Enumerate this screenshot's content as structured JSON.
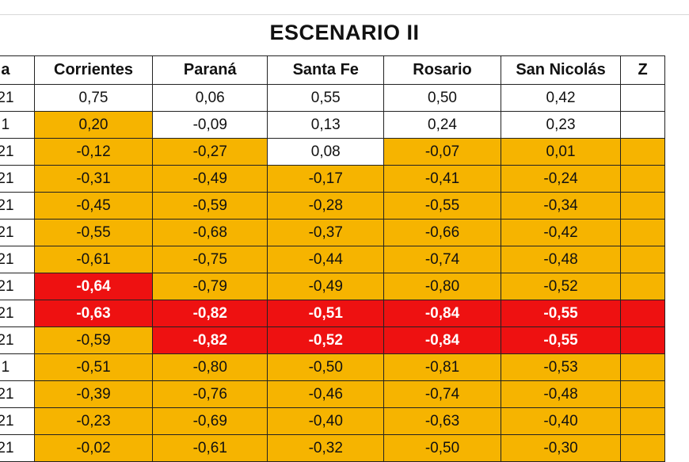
{
  "title": "ESCENARIO II",
  "header": {
    "first_col": "a",
    "columns": [
      "Corrientes",
      "Paraná",
      "Santa Fe",
      "Rosario",
      "San Nicolás",
      "Z"
    ]
  },
  "colors": {
    "orange": "#f6b400",
    "red": "#ee1111",
    "white": "#ffffff"
  },
  "rows": [
    {
      "label": "21",
      "values": [
        "0,75",
        "0,06",
        "0,55",
        "0,50",
        "0,42",
        ""
      ],
      "fills": [
        "white",
        "white",
        "white",
        "white",
        "white",
        "white"
      ]
    },
    {
      "label": "1",
      "values": [
        "0,20",
        "-0,09",
        "0,13",
        "0,24",
        "0,23",
        ""
      ],
      "fills": [
        "orange",
        "white",
        "white",
        "white",
        "white",
        "white"
      ]
    },
    {
      "label": "21",
      "values": [
        "-0,12",
        "-0,27",
        "0,08",
        "-0,07",
        "0,01",
        ""
      ],
      "fills": [
        "orange",
        "orange",
        "white",
        "orange",
        "orange",
        "orange"
      ]
    },
    {
      "label": "21",
      "values": [
        "-0,31",
        "-0,49",
        "-0,17",
        "-0,41",
        "-0,24",
        ""
      ],
      "fills": [
        "orange",
        "orange",
        "orange",
        "orange",
        "orange",
        "orange"
      ]
    },
    {
      "label": "21",
      "values": [
        "-0,45",
        "-0,59",
        "-0,28",
        "-0,55",
        "-0,34",
        ""
      ],
      "fills": [
        "orange",
        "orange",
        "orange",
        "orange",
        "orange",
        "orange"
      ]
    },
    {
      "label": "21",
      "values": [
        "-0,55",
        "-0,68",
        "-0,37",
        "-0,66",
        "-0,42",
        ""
      ],
      "fills": [
        "orange",
        "orange",
        "orange",
        "orange",
        "orange",
        "orange"
      ]
    },
    {
      "label": "21",
      "values": [
        "-0,61",
        "-0,75",
        "-0,44",
        "-0,74",
        "-0,48",
        ""
      ],
      "fills": [
        "orange",
        "orange",
        "orange",
        "orange",
        "orange",
        "orange"
      ]
    },
    {
      "label": "21",
      "values": [
        "-0,64",
        "-0,79",
        "-0,49",
        "-0,80",
        "-0,52",
        ""
      ],
      "fills": [
        "red",
        "orange",
        "orange",
        "orange",
        "orange",
        "orange"
      ]
    },
    {
      "label": "21",
      "values": [
        "-0,63",
        "-0,82",
        "-0,51",
        "-0,84",
        "-0,55",
        ""
      ],
      "fills": [
        "red",
        "red",
        "red",
        "red",
        "red",
        "red"
      ]
    },
    {
      "label": "21",
      "values": [
        "-0,59",
        "-0,82",
        "-0,52",
        "-0,84",
        "-0,55",
        ""
      ],
      "fills": [
        "orange",
        "red",
        "red",
        "red",
        "red",
        "red"
      ]
    },
    {
      "label": "1",
      "values": [
        "-0,51",
        "-0,80",
        "-0,50",
        "-0,81",
        "-0,53",
        ""
      ],
      "fills": [
        "orange",
        "orange",
        "orange",
        "orange",
        "orange",
        "orange"
      ]
    },
    {
      "label": "21",
      "values": [
        "-0,39",
        "-0,76",
        "-0,46",
        "-0,74",
        "-0,48",
        ""
      ],
      "fills": [
        "orange",
        "orange",
        "orange",
        "orange",
        "orange",
        "orange"
      ]
    },
    {
      "label": "21",
      "values": [
        "-0,23",
        "-0,69",
        "-0,40",
        "-0,63",
        "-0,40",
        ""
      ],
      "fills": [
        "orange",
        "orange",
        "orange",
        "orange",
        "orange",
        "orange"
      ]
    },
    {
      "label": "21",
      "values": [
        "-0,02",
        "-0,61",
        "-0,32",
        "-0,50",
        "-0,30",
        ""
      ],
      "fills": [
        "orange",
        "orange",
        "orange",
        "orange",
        "orange",
        "orange"
      ]
    }
  ]
}
